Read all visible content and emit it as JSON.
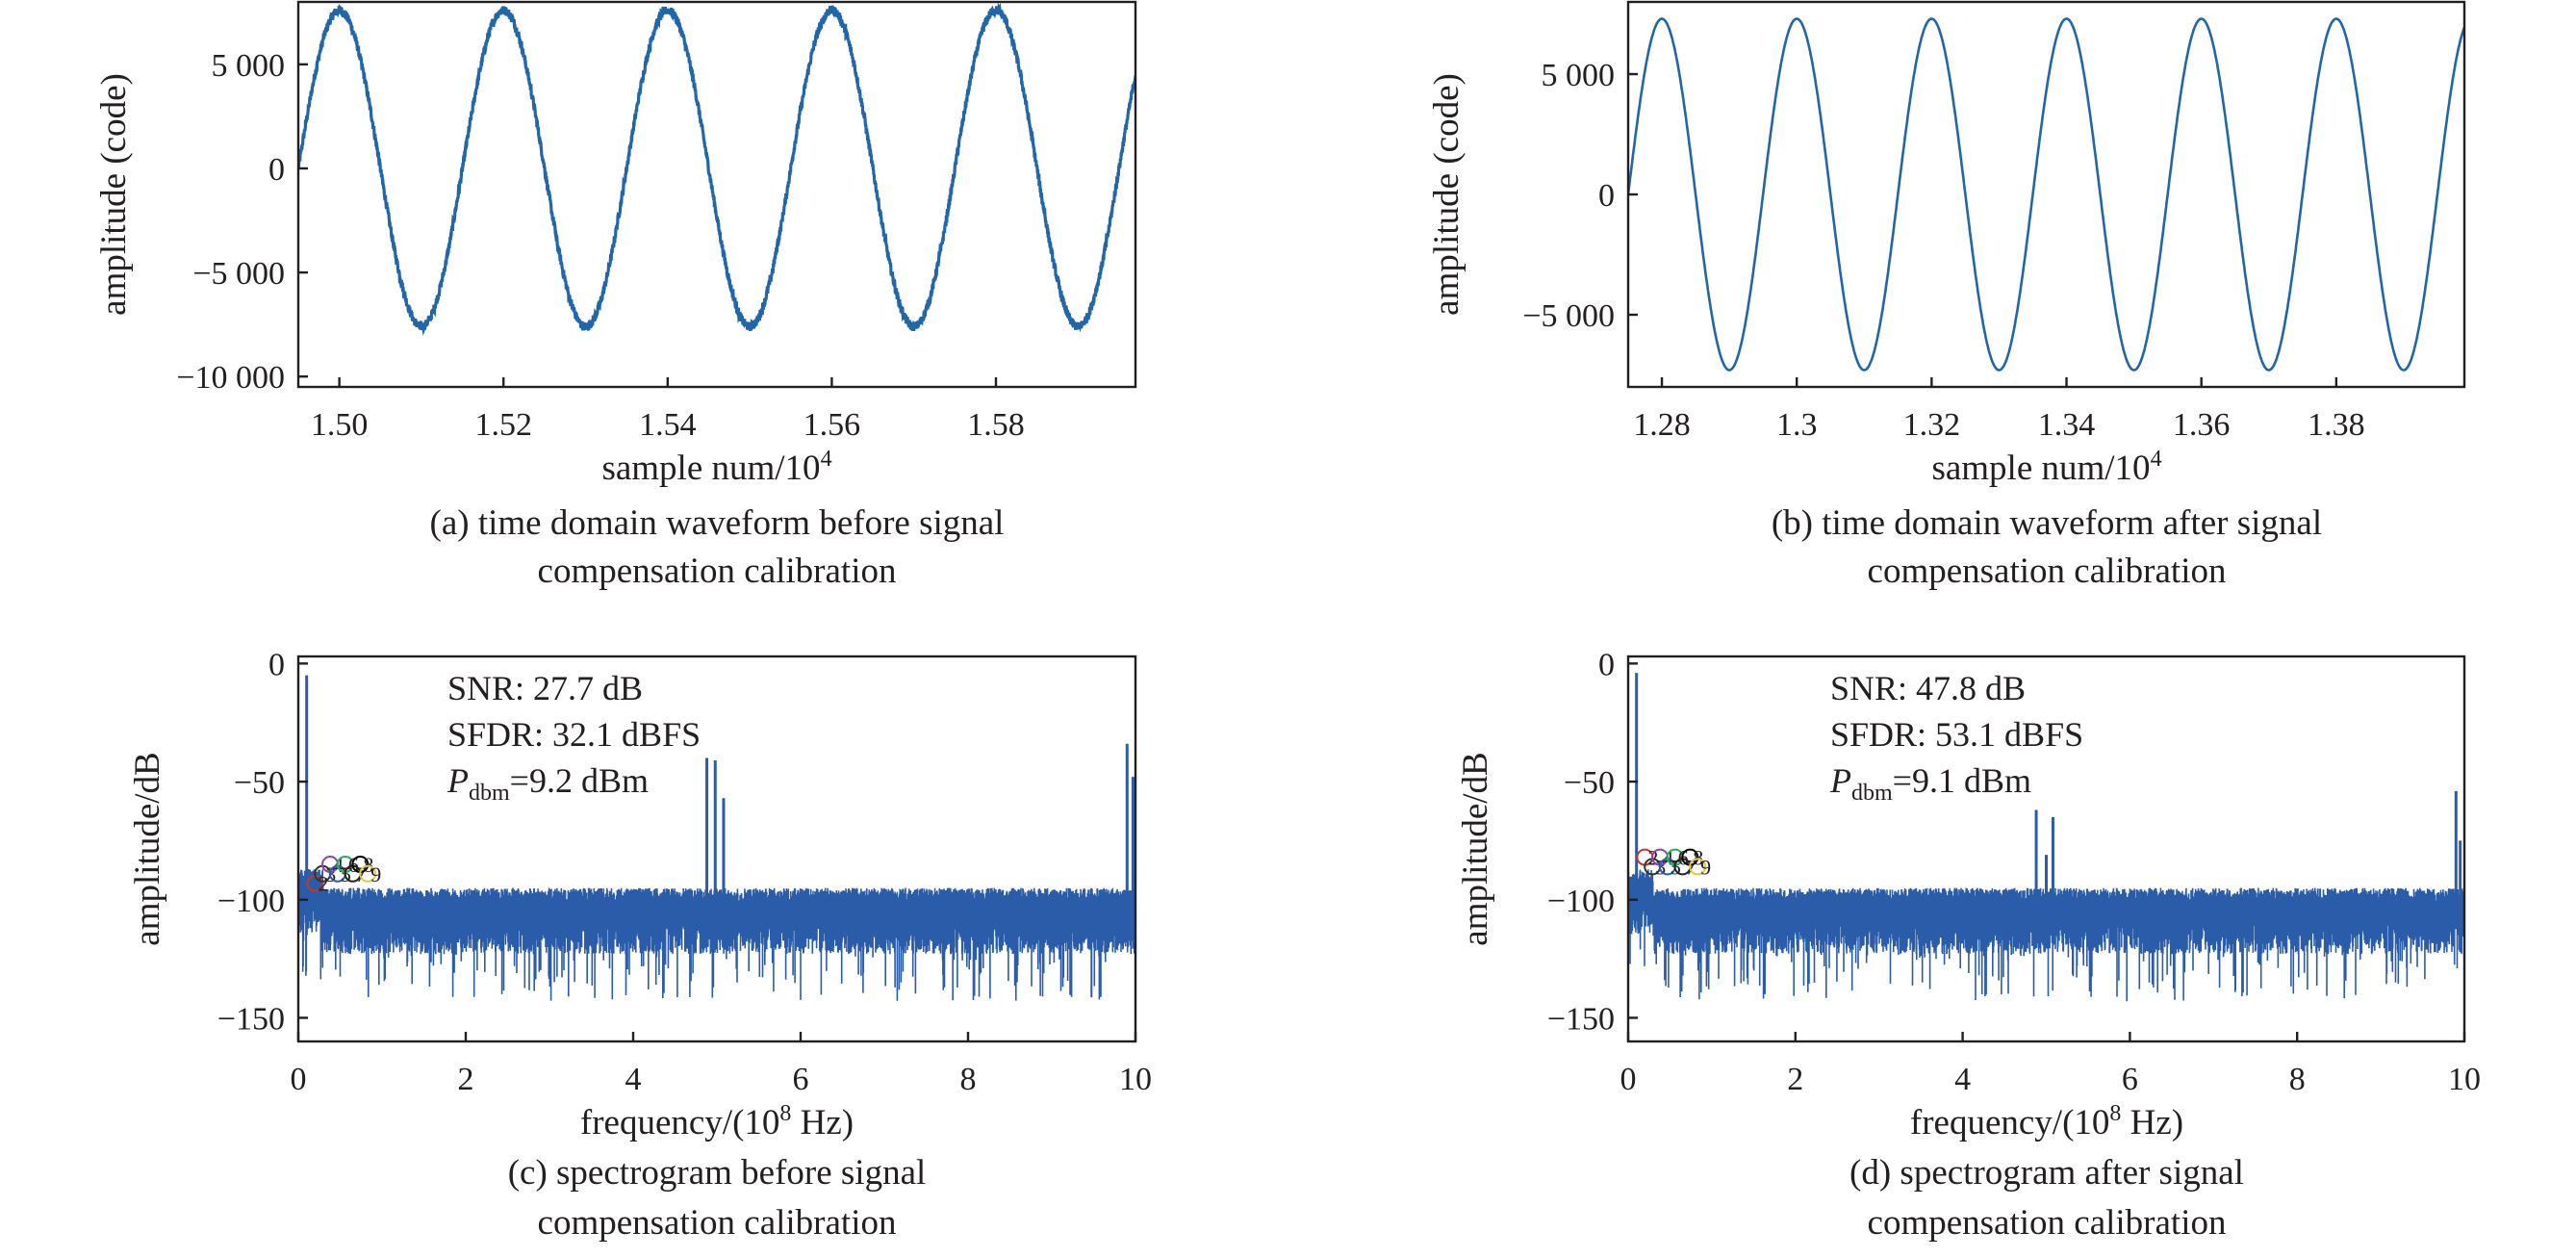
{
  "chart_data": [
    {
      "type": "line",
      "panel": "a",
      "xlabel": "sample num/10",
      "xlabel_sup": "4",
      "ylabel": "amplitude (code)",
      "caption_line1": "(a) time domain waveform before signal",
      "caption_line2": "compensation calibration",
      "xlim": [
        1.495,
        1.597
      ],
      "ylim": [
        -10500,
        8000
      ],
      "x_ticks": [
        1.5,
        1.52,
        1.54,
        1.56,
        1.58
      ],
      "x_tick_labels": [
        "1.50",
        "1.52",
        "1.54",
        "1.56",
        "1.58"
      ],
      "y_ticks": [
        5000,
        0,
        -5000,
        -10000
      ],
      "y_tick_labels": [
        "5 000",
        "0",
        "−5 000",
        "−10 000"
      ],
      "series": [
        {
          "amplitude": 7600,
          "offset": 0,
          "period": 0.02,
          "peak_at": 1.5,
          "ripple": 220,
          "color": "#2166a8",
          "x": [
            1.495,
            1.5,
            1.505,
            1.51,
            1.515,
            1.52,
            1.525,
            1.53,
            1.535,
            1.54,
            1.545,
            1.55,
            1.555,
            1.56,
            1.565,
            1.57,
            1.575,
            1.58,
            1.585,
            1.59,
            1.597
          ],
          "y": [
            0,
            7600,
            0,
            -7600,
            0,
            7600,
            0,
            -7600,
            0,
            7600,
            0,
            -7600,
            0,
            7600,
            0,
            -7600,
            0,
            7600,
            0,
            -7600,
            4700
          ]
        }
      ]
    },
    {
      "type": "line",
      "panel": "b",
      "xlabel": "sample num/10",
      "xlabel_sup": "4",
      "ylabel": "amplitude (code)",
      "caption_line1": "(b) time domain waveform after signal",
      "caption_line2": "compensation calibration",
      "xlim": [
        1.275,
        1.399
      ],
      "ylim": [
        -8000,
        8000
      ],
      "x_ticks": [
        1.28,
        1.3,
        1.32,
        1.34,
        1.36,
        1.38
      ],
      "x_tick_labels": [
        "1.28",
        "1.3",
        "1.32",
        "1.34",
        "1.36",
        "1.38"
      ],
      "y_ticks": [
        5000,
        0,
        -5000
      ],
      "y_tick_labels": [
        "5 000",
        "0",
        "−5 000"
      ],
      "series": [
        {
          "amplitude": 7300,
          "offset": 0,
          "period": 0.02,
          "peak_at": 1.28,
          "ripple": 0,
          "color": "#2166a8",
          "x": [
            1.275,
            1.28,
            1.285,
            1.29,
            1.295,
            1.3,
            1.305,
            1.31,
            1.315,
            1.32,
            1.325,
            1.33,
            1.335,
            1.34,
            1.345,
            1.35,
            1.355,
            1.36,
            1.365,
            1.37,
            1.375,
            1.38,
            1.385,
            1.39,
            1.399
          ],
          "y": [
            0,
            7300,
            0,
            -7300,
            0,
            7300,
            0,
            -7300,
            0,
            7300,
            0,
            -7300,
            0,
            7300,
            0,
            -7300,
            0,
            7300,
            0,
            -7300,
            0,
            7300,
            0,
            -7300,
            7300
          ]
        }
      ]
    },
    {
      "type": "line",
      "panel": "c",
      "xlabel": "frequency/(10",
      "xlabel_sup": "8",
      "xlabel_tail": " Hz)",
      "ylabel": "amplitude/dB",
      "caption_line1": "(c) spectrogram before signal",
      "caption_line2": "compensation calibration",
      "xlim": [
        0,
        10
      ],
      "ylim": [
        -160,
        3
      ],
      "x_ticks": [
        0,
        2,
        4,
        6,
        8,
        10
      ],
      "x_tick_labels": [
        "0",
        "2",
        "4",
        "6",
        "8",
        "10"
      ],
      "y_ticks": [
        0,
        -50,
        -100,
        -150
      ],
      "y_tick_labels": [
        "0",
        "−50",
        "−100",
        "−150"
      ],
      "noise_floor": -103,
      "spurs": [
        [
          0.1,
          -5
        ],
        [
          4.88,
          -40
        ],
        [
          4.98,
          -41
        ],
        [
          5.08,
          -57
        ],
        [
          9.9,
          -34
        ],
        [
          9.97,
          -48
        ]
      ],
      "annotations": {
        "snr": "SNR: 27.7 dB",
        "sfdr": "SFDR: 32.1 dBFS",
        "pdbm_sym": "P",
        "pdbm_sub": "dbm",
        "pdbm_val": "=9.2 dBm"
      },
      "harmonic_markers": [
        "2",
        "3",
        "4",
        "5",
        "6",
        "7",
        "8",
        "9"
      ],
      "series": [
        {
          "color": "#2a5caa"
        }
      ]
    },
    {
      "type": "line",
      "panel": "d",
      "xlabel": "frequency/(10",
      "xlabel_sup": "8",
      "xlabel_tail": " Hz)",
      "ylabel": "amplitude/dB",
      "caption_line1": "(d) spectrogram after signal",
      "caption_line2": "compensation calibration",
      "xlim": [
        0,
        10
      ],
      "ylim": [
        -160,
        3
      ],
      "x_ticks": [
        0,
        2,
        4,
        6,
        8,
        10
      ],
      "x_tick_labels": [
        "0",
        "2",
        "4",
        "6",
        "8",
        "10"
      ],
      "y_ticks": [
        0,
        -50,
        -100,
        -150
      ],
      "y_tick_labels": [
        "0",
        "−50",
        "−100",
        "−150"
      ],
      "noise_floor": -103,
      "spurs": [
        [
          0.1,
          -4
        ],
        [
          4.88,
          -62
        ],
        [
          5.0,
          -81
        ],
        [
          5.08,
          -65
        ],
        [
          9.9,
          -54
        ],
        [
          9.95,
          -75
        ]
      ],
      "annotations": {
        "snr": "SNR: 47.8 dB",
        "sfdr": "SFDR: 53.1 dBFS",
        "pdbm_sym": "P",
        "pdbm_sub": "dbm",
        "pdbm_val": "=9.1 dBm"
      },
      "harmonic_markers": [
        "2",
        "3",
        "4",
        "5",
        "6",
        "7",
        "8",
        "9"
      ],
      "series": [
        {
          "color": "#2a5caa"
        }
      ]
    }
  ]
}
